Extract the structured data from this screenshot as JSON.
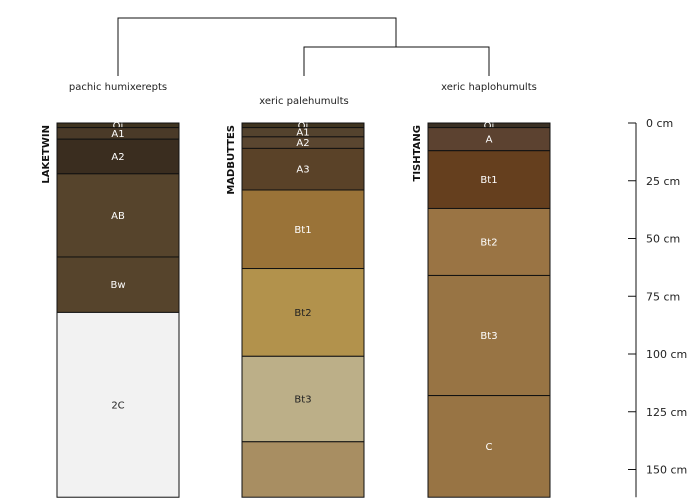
{
  "depth_axis": {
    "unit": "cm",
    "ticks": [
      0,
      25,
      50,
      75,
      100,
      125,
      150
    ],
    "range": [
      0,
      162
    ]
  },
  "dendrogram": {
    "groups": [
      {
        "label": "pachic humixerepts"
      },
      {
        "label": "xeric palehumults"
      },
      {
        "label": "xeric haplohumults"
      }
    ]
  },
  "profiles": [
    {
      "name": "LAKETWIN",
      "horizons": [
        {
          "name": "Oi",
          "top": 0,
          "bottom": 2,
          "color": "#3f3420"
        },
        {
          "name": "A1",
          "top": 2,
          "bottom": 7,
          "color": "#4a3a28"
        },
        {
          "name": "A2",
          "top": 7,
          "bottom": 22,
          "color": "#3a2d1f"
        },
        {
          "name": "AB",
          "top": 22,
          "bottom": 58,
          "color": "#56442c"
        },
        {
          "name": "Bw",
          "top": 58,
          "bottom": 82,
          "color": "#56442c"
        },
        {
          "name": "2C",
          "top": 82,
          "bottom": 162,
          "color": "#f2f2f2"
        }
      ]
    },
    {
      "name": "MADBUTTES",
      "horizons": [
        {
          "name": "Oi",
          "top": 0,
          "bottom": 2,
          "color": "#3f3420"
        },
        {
          "name": "A1",
          "top": 2,
          "bottom": 6,
          "color": "#54432e"
        },
        {
          "name": "A2",
          "top": 6,
          "bottom": 11,
          "color": "#5a4630"
        },
        {
          "name": "A3",
          "top": 11,
          "bottom": 29,
          "color": "#5a4228"
        },
        {
          "name": "Bt1",
          "top": 29,
          "bottom": 63,
          "color": "#9a7338"
        },
        {
          "name": "Bt2",
          "top": 63,
          "bottom": 101,
          "color": "#b2924c"
        },
        {
          "name": "Bt3",
          "top": 101,
          "bottom": 138,
          "color": "#bcaf88"
        },
        {
          "name": "",
          "top": 138,
          "bottom": 162,
          "color": "#a88e62"
        }
      ]
    },
    {
      "name": "TISHTANG",
      "horizons": [
        {
          "name": "Oi",
          "top": 0,
          "bottom": 2,
          "color": "#3a3024"
        },
        {
          "name": "A",
          "top": 2,
          "bottom": 12,
          "color": "#5c4230"
        },
        {
          "name": "Bt1",
          "top": 12,
          "bottom": 37,
          "color": "#653f1e"
        },
        {
          "name": "Bt2",
          "top": 37,
          "bottom": 66,
          "color": "#9a7444"
        },
        {
          "name": "Bt3",
          "top": 66,
          "bottom": 118,
          "color": "#987444"
        },
        {
          "name": "C",
          "top": 118,
          "bottom": 162,
          "color": "#987444"
        }
      ]
    }
  ]
}
